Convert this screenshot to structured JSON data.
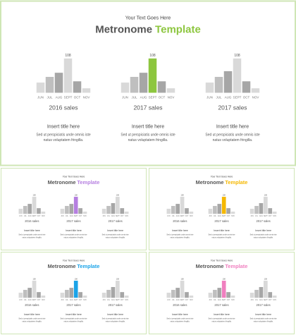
{
  "slides": [
    {
      "subtitle": "Your Text Goes Here",
      "title_main": "Metronome",
      "title_accent": "Template",
      "accent": "#8dc63f",
      "charts": [
        {
          "label": "2016 sales",
          "categories": [
            "JUN",
            "JUL",
            "AUG",
            "SEPT",
            "OCT",
            "NOV"
          ],
          "values": [
            32,
            50,
            63,
            108,
            36,
            14
          ],
          "colors": [
            "#d9d9d9",
            "#bfbfbf",
            "#a6a6a6",
            "#d9d9d9",
            "#a6a6a6",
            "#d9d9d9"
          ],
          "ylim": [
            0,
            120
          ],
          "label_index": 3
        },
        {
          "label": "2017 sales",
          "categories": [
            "JUN",
            "JUL",
            "AUG",
            "SEPT",
            "OCT",
            "NOV"
          ],
          "values": [
            32,
            50,
            63,
            108,
            36,
            14
          ],
          "colors": [
            "#d9d9d9",
            "#bfbfbf",
            "#a6a6a6",
            "#8dc63f",
            "#a6a6a6",
            "#d9d9d9"
          ],
          "ylim": [
            0,
            120
          ],
          "label_index": 3
        },
        {
          "label": "2017 sales",
          "categories": [
            "JUN",
            "JUL",
            "AUG",
            "SEPT",
            "OCT",
            "NOV"
          ],
          "values": [
            32,
            50,
            68,
            108,
            36,
            14
          ],
          "colors": [
            "#d9d9d9",
            "#bfbfbf",
            "#a6a6a6",
            "#d9d9d9",
            "#a6a6a6",
            "#d9d9d9"
          ],
          "ylim": [
            0,
            120
          ],
          "label_index": 3
        }
      ],
      "items": [
        {
          "title": "Insert title here",
          "body": [
            "Sed ut perspiciatis unde omnis iste",
            "natus voluptatem fringilla."
          ]
        },
        {
          "title": "Insert title here",
          "body": [
            "Sed ut perspiciatis unde omnis iste",
            "natus voluptatem fringilla."
          ]
        },
        {
          "title": "Insert title here",
          "body": [
            "Sed ut perspiciatis unde omnis iste",
            "natus voluptatem fringilla."
          ]
        }
      ]
    },
    {
      "subtitle": "Your Text Goes Here",
      "title_main": "Metronome",
      "title_accent": "Template",
      "accent": "#b57fe0",
      "charts": [
        {
          "label": "2016 sales",
          "categories": [
            "JUN",
            "JUL",
            "AUG",
            "SEPT",
            "OCT",
            "NOV"
          ],
          "values": [
            32,
            50,
            63,
            108,
            36,
            14
          ],
          "colors": [
            "#d9d9d9",
            "#bfbfbf",
            "#a6a6a6",
            "#d9d9d9",
            "#a6a6a6",
            "#d9d9d9"
          ],
          "ylim": [
            0,
            120
          ],
          "label_index": 3
        },
        {
          "label": "2017 sales",
          "categories": [
            "JUN",
            "JUL",
            "AUG",
            "SEPT",
            "OCT",
            "NOV"
          ],
          "values": [
            32,
            50,
            63,
            108,
            36,
            14
          ],
          "colors": [
            "#d9d9d9",
            "#bfbfbf",
            "#a6a6a6",
            "#b57fe0",
            "#a6a6a6",
            "#d9d9d9"
          ],
          "ylim": [
            0,
            120
          ],
          "label_index": 3
        },
        {
          "label": "2017 sales",
          "categories": [
            "JUN",
            "JUL",
            "AUG",
            "SEPT",
            "OCT",
            "NOV"
          ],
          "values": [
            32,
            50,
            68,
            108,
            36,
            14
          ],
          "colors": [
            "#d9d9d9",
            "#bfbfbf",
            "#a6a6a6",
            "#d9d9d9",
            "#a6a6a6",
            "#d9d9d9"
          ],
          "ylim": [
            0,
            120
          ],
          "label_index": 3
        }
      ],
      "items": [
        {
          "title": "Insert title here",
          "body": [
            "Sed ut perspiciatis unde omnis iste",
            "natus voluptatem fringilla."
          ]
        },
        {
          "title": "Insert title here",
          "body": [
            "Sed ut perspiciatis unde omnis iste",
            "natus voluptatem fringilla."
          ]
        },
        {
          "title": "Insert title here",
          "body": [
            "Sed ut perspiciatis unde omnis iste",
            "natus voluptatem fringilla."
          ]
        }
      ]
    },
    {
      "subtitle": "Your Text Goes Here",
      "title_main": "Metronome",
      "title_accent": "Template",
      "accent": "#f5b800",
      "charts": [
        {
          "label": "2016 sales",
          "categories": [
            "JUN",
            "JUL",
            "AUG",
            "SEPT",
            "OCT",
            "NOV"
          ],
          "values": [
            32,
            50,
            63,
            108,
            36,
            14
          ],
          "colors": [
            "#d9d9d9",
            "#bfbfbf",
            "#a6a6a6",
            "#d9d9d9",
            "#a6a6a6",
            "#d9d9d9"
          ],
          "ylim": [
            0,
            120
          ],
          "label_index": 3
        },
        {
          "label": "2017 sales",
          "categories": [
            "JUN",
            "JUL",
            "AUG",
            "SEPT",
            "OCT",
            "NOV"
          ],
          "values": [
            32,
            50,
            63,
            108,
            36,
            14
          ],
          "colors": [
            "#d9d9d9",
            "#bfbfbf",
            "#a6a6a6",
            "#f5b800",
            "#a6a6a6",
            "#d9d9d9"
          ],
          "ylim": [
            0,
            120
          ],
          "label_index": 3
        },
        {
          "label": "2017 sales",
          "categories": [
            "JUN",
            "JUL",
            "AUG",
            "SEPT",
            "OCT",
            "NOV"
          ],
          "values": [
            32,
            50,
            68,
            108,
            36,
            14
          ],
          "colors": [
            "#d9d9d9",
            "#bfbfbf",
            "#a6a6a6",
            "#d9d9d9",
            "#a6a6a6",
            "#d9d9d9"
          ],
          "ylim": [
            0,
            120
          ],
          "label_index": 3
        }
      ],
      "items": [
        {
          "title": "Insert title here",
          "body": [
            "Sed ut perspiciatis unde omnis iste",
            "natus voluptatem fringilla."
          ]
        },
        {
          "title": "Insert title here",
          "body": [
            "Sed ut perspiciatis unde omnis iste",
            "natus voluptatem fringilla."
          ]
        },
        {
          "title": "Insert title here",
          "body": [
            "Sed ut perspiciatis unde omnis iste",
            "natus voluptatem fringilla."
          ]
        }
      ]
    },
    {
      "subtitle": "Your Text Goes Here",
      "title_main": "Metronome",
      "title_accent": "Template",
      "accent": "#1aa3e8",
      "charts": [
        {
          "label": "2016 sales",
          "categories": [
            "JUN",
            "JUL",
            "AUG",
            "SEPT",
            "OCT",
            "NOV"
          ],
          "values": [
            32,
            50,
            63,
            108,
            36,
            14
          ],
          "colors": [
            "#d9d9d9",
            "#bfbfbf",
            "#a6a6a6",
            "#d9d9d9",
            "#a6a6a6",
            "#d9d9d9"
          ],
          "ylim": [
            0,
            120
          ],
          "label_index": 3
        },
        {
          "label": "2017 sales",
          "categories": [
            "JUN",
            "JUL",
            "AUG",
            "SEPT",
            "OCT",
            "NOV"
          ],
          "values": [
            32,
            50,
            63,
            108,
            36,
            14
          ],
          "colors": [
            "#d9d9d9",
            "#bfbfbf",
            "#a6a6a6",
            "#1aa3e8",
            "#a6a6a6",
            "#d9d9d9"
          ],
          "ylim": [
            0,
            120
          ],
          "label_index": 3
        },
        {
          "label": "2017 sales",
          "categories": [
            "JUN",
            "JUL",
            "AUG",
            "SEPT",
            "OCT",
            "NOV"
          ],
          "values": [
            32,
            50,
            68,
            108,
            36,
            14
          ],
          "colors": [
            "#d9d9d9",
            "#bfbfbf",
            "#a6a6a6",
            "#d9d9d9",
            "#a6a6a6",
            "#d9d9d9"
          ],
          "ylim": [
            0,
            120
          ],
          "label_index": 3
        }
      ],
      "items": [
        {
          "title": "Insert title here",
          "body": [
            "Sed ut perspiciatis unde omnis iste",
            "natus voluptatem fringilla."
          ]
        },
        {
          "title": "Insert title here",
          "body": [
            "Sed ut perspiciatis unde omnis iste",
            "natus voluptatem fringilla."
          ]
        },
        {
          "title": "Insert title here",
          "body": [
            "Sed ut perspiciatis unde omnis iste",
            "natus voluptatem fringilla."
          ]
        }
      ]
    },
    {
      "subtitle": "Your Text Goes Here",
      "title_main": "Metronome",
      "title_accent": "Template",
      "accent": "#f07fbf",
      "charts": [
        {
          "label": "2016 sales",
          "categories": [
            "JUN",
            "JUL",
            "AUG",
            "SEPT",
            "OCT",
            "NOV"
          ],
          "values": [
            32,
            50,
            63,
            108,
            36,
            14
          ],
          "colors": [
            "#d9d9d9",
            "#bfbfbf",
            "#a6a6a6",
            "#d9d9d9",
            "#a6a6a6",
            "#d9d9d9"
          ],
          "ylim": [
            0,
            120
          ],
          "label_index": 3
        },
        {
          "label": "2017 sales",
          "categories": [
            "JUN",
            "JUL",
            "AUG",
            "SEPT",
            "OCT",
            "NOV"
          ],
          "values": [
            32,
            50,
            63,
            108,
            36,
            14
          ],
          "colors": [
            "#d9d9d9",
            "#bfbfbf",
            "#a6a6a6",
            "#f07fbf",
            "#a6a6a6",
            "#d9d9d9"
          ],
          "ylim": [
            0,
            120
          ],
          "label_index": 3
        },
        {
          "label": "2017 sales",
          "categories": [
            "JUN",
            "JUL",
            "AUG",
            "SEPT",
            "OCT",
            "NOV"
          ],
          "values": [
            32,
            50,
            68,
            108,
            36,
            14
          ],
          "colors": [
            "#d9d9d9",
            "#bfbfbf",
            "#a6a6a6",
            "#d9d9d9",
            "#a6a6a6",
            "#d9d9d9"
          ],
          "ylim": [
            0,
            120
          ],
          "label_index": 3
        }
      ],
      "items": [
        {
          "title": "Insert title here",
          "body": [
            "Sed ut perspiciatis unde omnis iste",
            "natus voluptatem fringilla."
          ]
        },
        {
          "title": "Insert title here",
          "body": [
            "Sed ut perspiciatis unde omnis iste",
            "natus voluptatem fringilla."
          ]
        },
        {
          "title": "Insert title here",
          "body": [
            "Sed ut perspiciatis unde omnis iste",
            "natus voluptatem fringilla."
          ]
        }
      ]
    }
  ]
}
